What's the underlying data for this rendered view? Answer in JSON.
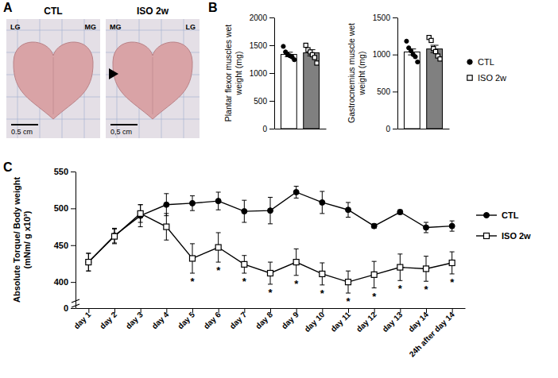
{
  "panel_labels": [
    "A",
    "B",
    "C"
  ],
  "photo": {
    "images": [
      {
        "title": "CTL",
        "labels": [
          "LG",
          "MG"
        ],
        "scale_bar": "0.5 cm"
      },
      {
        "title": "ISO 2w",
        "labels": [
          "MG",
          "LG"
        ],
        "scale_bar": "0,5 cm"
      }
    ]
  },
  "chart_data": [
    {
      "type": "bar",
      "ylabel": "Plantar flexor muscles wet weight (mg)",
      "categories": [
        null
      ],
      "series": [
        {
          "color": "#ffffff",
          "marker": "circle",
          "values": [
            1335
          ],
          "error": [
            40
          ],
          "points": [
            1480,
            1380,
            1330,
            1310,
            1290,
            1240
          ]
        },
        {
          "color": "#808080",
          "marker": "square",
          "values": [
            1365
          ],
          "error": [
            55
          ],
          "points": [
            1500,
            1420,
            1380,
            1330,
            1280,
            1180
          ]
        }
      ],
      "ylim": [
        0,
        2000
      ],
      "yticks": [
        0,
        500,
        1000,
        1500,
        2000
      ],
      "tick_labels": "y"
    },
    {
      "type": "bar",
      "ylabel": "Gastrocnemius muscle wet weight (mg)",
      "categories": [
        null
      ],
      "series": [
        {
          "name": "CTL",
          "color": "#ffffff",
          "marker": "circle",
          "values": [
            1035
          ],
          "error": [
            40
          ],
          "points": [
            1180,
            1090,
            1050,
            1000,
            970,
            900
          ]
        },
        {
          "name": "ISO 2w",
          "color": "#808080",
          "marker": "square",
          "values": [
            1075
          ],
          "error": [
            50
          ],
          "points": [
            1230,
            1190,
            1080,
            1040,
            980,
            940
          ]
        }
      ],
      "ylim": [
        0,
        1500
      ],
      "yticks": [
        0,
        500,
        1000,
        1500
      ],
      "tick_labels": "y",
      "legend": "right"
    },
    {
      "type": "line",
      "ylabel": "Absolute Torque/ Body weight (mNm/ g x10³)",
      "categories": [
        "day 1",
        "day 2",
        "day 3",
        "day 4",
        "day 5",
        "day 6",
        "day 7",
        "day 8",
        "day 9",
        "day 10",
        "day 11",
        "day 12",
        "day 13",
        "day 14",
        "24h after day 14"
      ],
      "series": [
        {
          "name": "CTL",
          "color": "#000000",
          "marker": "circle",
          "values": [
            427,
            463,
            490,
            505,
            507,
            510,
            496,
            497,
            522,
            508,
            498,
            476,
            495,
            474,
            476
          ],
          "error": [
            12,
            10,
            15,
            15,
            10,
            12,
            15,
            18,
            8,
            15,
            10,
            3,
            3,
            7,
            7
          ]
        },
        {
          "name": "ISO 2w",
          "color": "#000000",
          "marker": "square",
          "values": [
            427,
            462,
            493,
            475,
            432,
            447,
            424,
            412,
            427,
            411,
            400,
            410,
            420,
            418,
            426
          ],
          "error": [
            12,
            10,
            12,
            18,
            20,
            20,
            12,
            15,
            18,
            15,
            15,
            18,
            18,
            17,
            15
          ]
        }
      ],
      "ylim": [
        0,
        550
      ],
      "yticks": [
        0,
        400,
        450,
        500,
        550
      ],
      "legend": "right",
      "annotations": [
        {
          "x": "day 5",
          "text": "*"
        },
        {
          "x": "day 6",
          "text": "*"
        },
        {
          "x": "day 7",
          "text": "*"
        },
        {
          "x": "day 8",
          "text": "*"
        },
        {
          "x": "day 9",
          "text": "*"
        },
        {
          "x": "day 10",
          "text": "*"
        },
        {
          "x": "day 11",
          "text": "*"
        },
        {
          "x": "day 12",
          "text": "*"
        },
        {
          "x": "day 13",
          "text": "*"
        },
        {
          "x": "day 14",
          "text": "*"
        },
        {
          "x": "24h after day 14",
          "text": "*"
        }
      ]
    }
  ]
}
